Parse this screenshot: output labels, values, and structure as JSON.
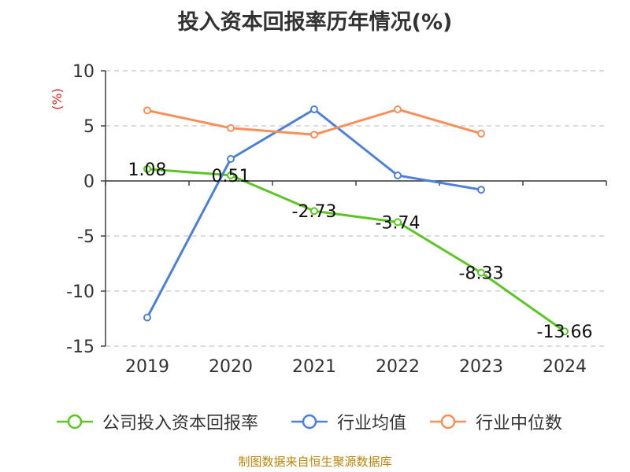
{
  "chart_data": {
    "type": "line",
    "title": "投入资本回报率历年情况(%)",
    "ylabel": "(%)",
    "categories": [
      "2019",
      "2020",
      "2021",
      "2022",
      "2023",
      "2024"
    ],
    "ylim": [
      -15,
      10
    ],
    "yticks": [
      10,
      5,
      0,
      -5,
      -10,
      -15
    ],
    "grid": "horizontal-dashed",
    "legend_position": "bottom",
    "series": [
      {
        "name": "公司投入资本回报率",
        "color": "#5cc525",
        "values": [
          1.08,
          0.51,
          -2.73,
          -3.74,
          -8.33,
          -13.66
        ],
        "labels": [
          "1.08",
          "0.51",
          "-2.73",
          "-3.74",
          "-8.33",
          "-13.66"
        ]
      },
      {
        "name": "行业均值",
        "color": "#4c7fd8",
        "values": [
          -12.4,
          2.0,
          6.5,
          0.5,
          -0.8,
          null
        ]
      },
      {
        "name": "行业中位数",
        "color": "#f88f5b",
        "values": [
          6.4,
          4.8,
          4.2,
          6.5,
          4.3,
          null
        ]
      }
    ]
  },
  "footer": {
    "source": "制图数据来自恒生聚源数据库"
  }
}
